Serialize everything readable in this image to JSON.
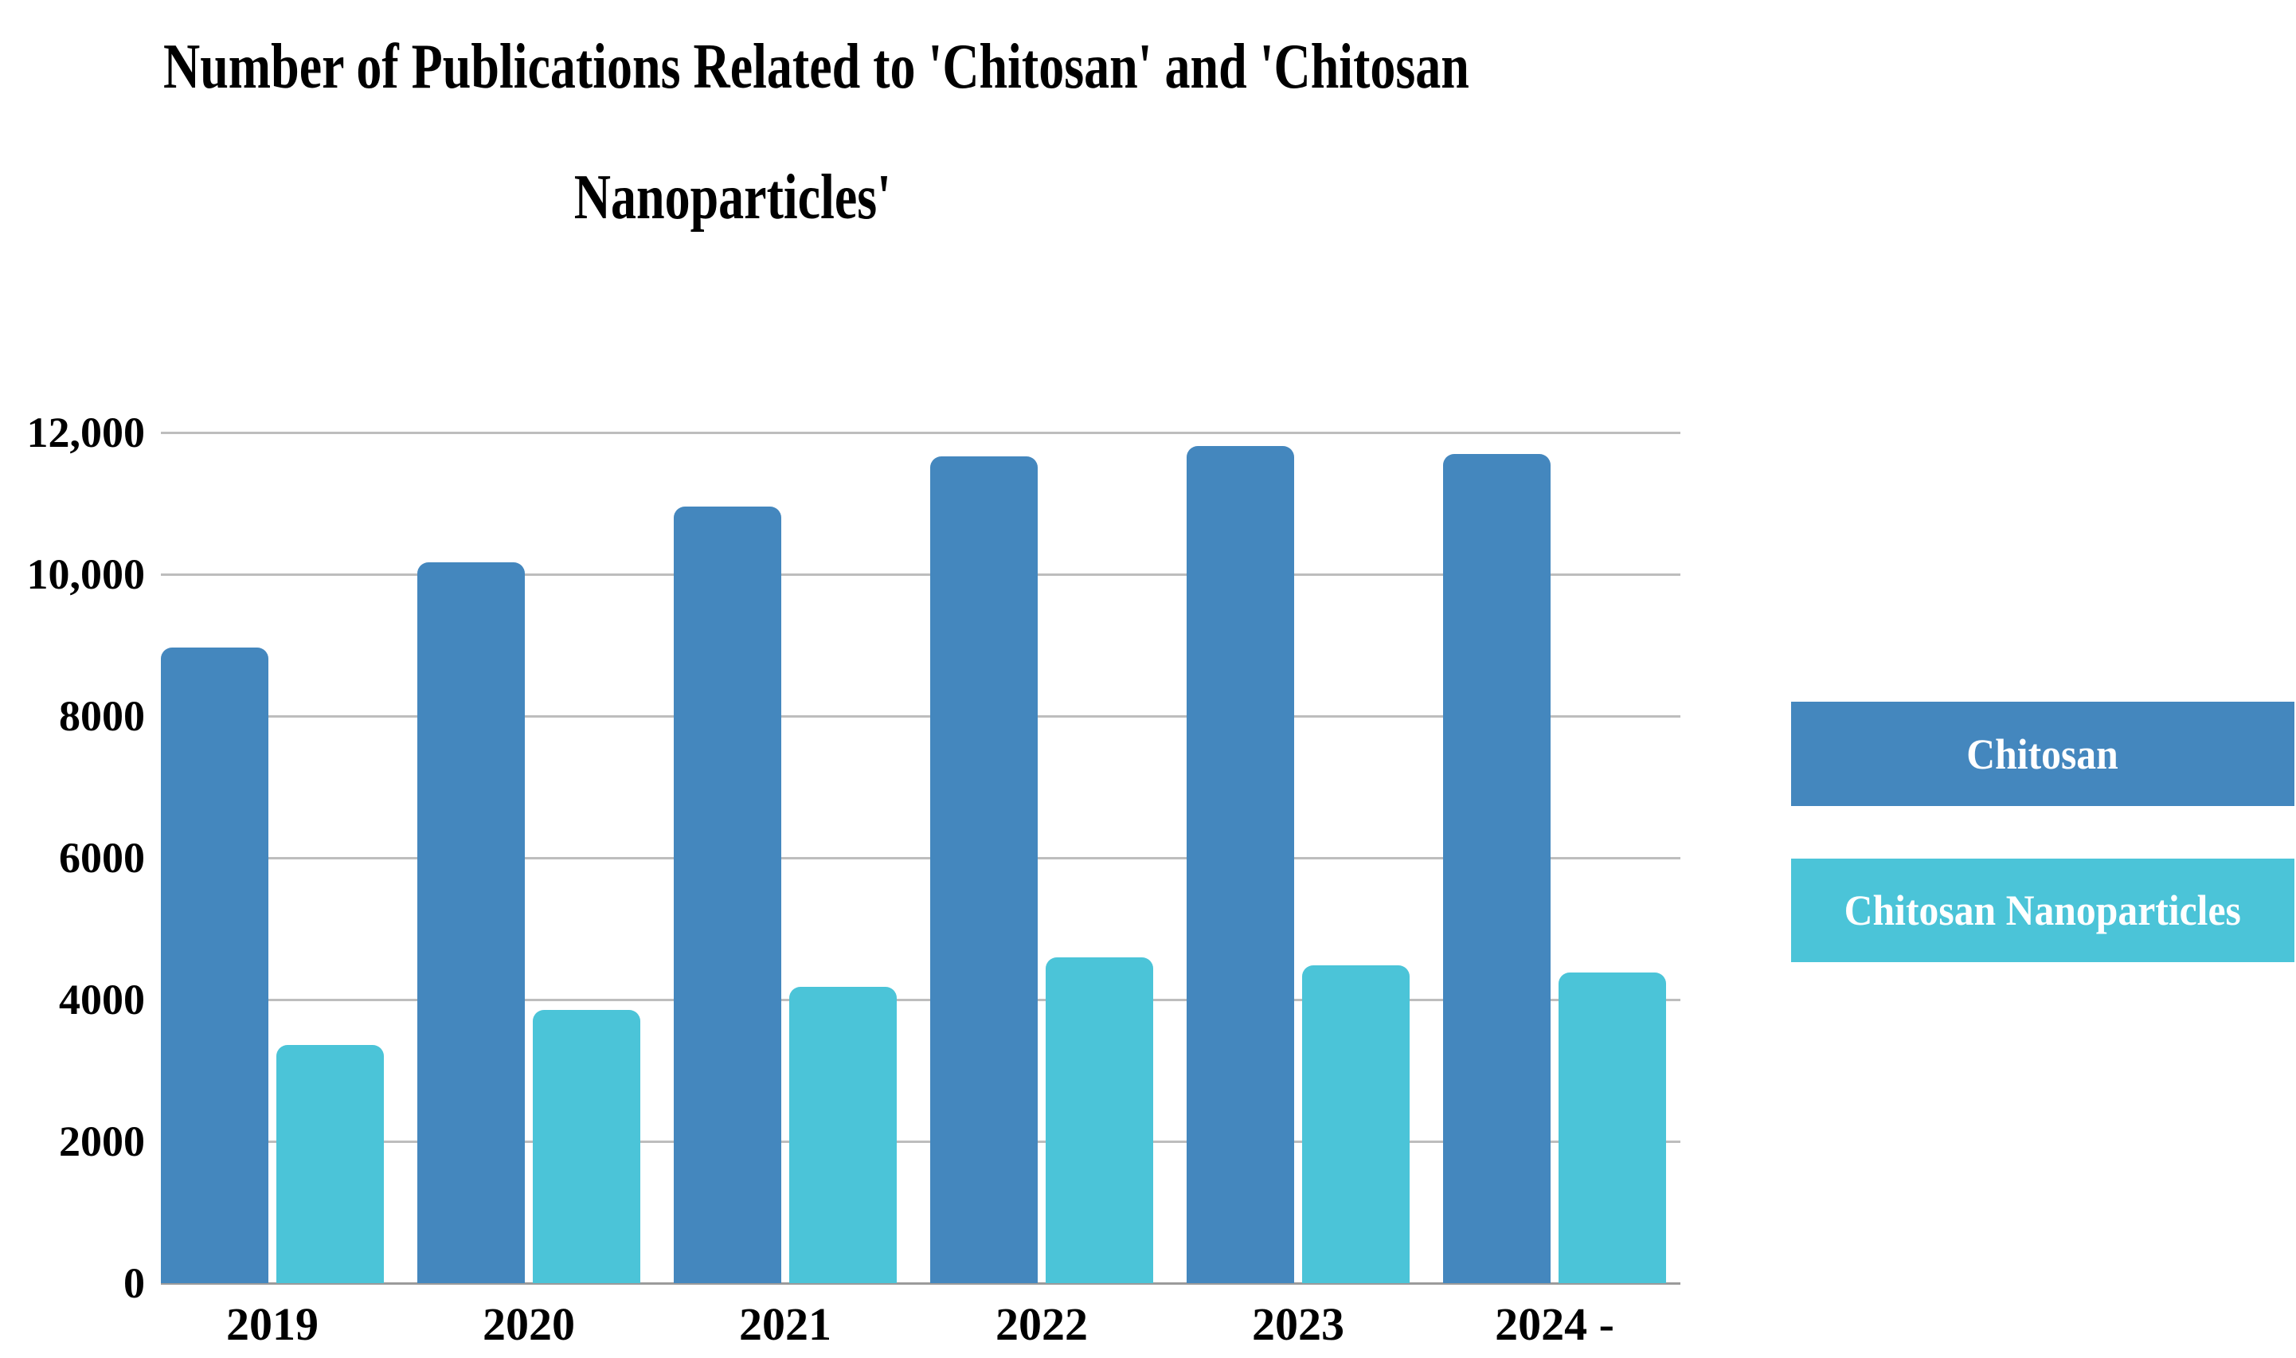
{
  "title": {
    "line1": "Number of Publications Related to 'Chitosan' and 'Chitosan",
    "line2": "Nanoparticles'"
  },
  "chart_data": {
    "type": "bar",
    "title": "Number of Publications Related to 'Chitosan' and 'Chitosan Nanoparticles'",
    "categories": [
      "2019",
      "2020",
      "2021",
      "2022",
      "2023",
      "2024 -"
    ],
    "series": [
      {
        "name": "Chitosan",
        "color": "#4487BE",
        "values": [
          8970,
          10170,
          10950,
          11660,
          11810,
          11700
        ]
      },
      {
        "name": "Chitosan Nanoparticles",
        "color": "#4BC4D8",
        "values": [
          3360,
          3850,
          4180,
          4600,
          4480,
          4380
        ]
      }
    ],
    "xlabel": "",
    "ylabel": "",
    "ylim": [
      0,
      12000
    ],
    "yticks": [
      {
        "value": 0,
        "label": "0"
      },
      {
        "value": 2000,
        "label": "2000"
      },
      {
        "value": 4000,
        "label": "4000"
      },
      {
        "value": 6000,
        "label": "6000"
      },
      {
        "value": 8000,
        "label": "8000"
      },
      {
        "value": 10000,
        "label": "10,000"
      },
      {
        "value": 12000,
        "label": "12,000"
      }
    ],
    "grid": "horizontal",
    "legend_position": "right"
  },
  "legend": {
    "items": [
      {
        "label": "Chitosan",
        "color": "#4487BE"
      },
      {
        "label": "Chitosan Nanoparticles",
        "color": "#4BC4D8"
      }
    ]
  },
  "colors": {
    "chitosan_bar": "#4487BE",
    "chitosan_nanoparticles_bar": "#4BC4D8",
    "gridline": "#bdbdbd",
    "baseline": "#9b9b9b",
    "legend_text": "#ffffff",
    "text": "#000000"
  }
}
